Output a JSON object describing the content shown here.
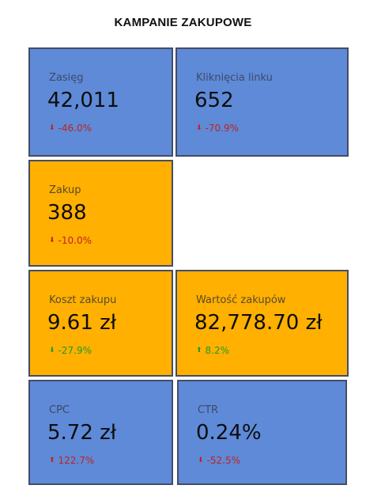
{
  "title": "KAMPANIE ZAKUPOWE",
  "colors": {
    "blue_card": "#5e8ad8",
    "orange_card": "#ffb000",
    "negative": "#c0231f",
    "positive": "#1f9a2a"
  },
  "cards": [
    {
      "label": "Zasięg",
      "value": "42,011",
      "delta": "-46.0%",
      "direction": "down",
      "trend": "negative",
      "color": "blue"
    },
    {
      "label": "Kliknięcia linku",
      "value": "652",
      "delta": "-70.9%",
      "direction": "down",
      "trend": "negative",
      "color": "blue"
    },
    {
      "label": "Zakup",
      "value": "388",
      "delta": "-10.0%",
      "direction": "down",
      "trend": "negative",
      "color": "orange"
    },
    {
      "label": "Koszt zakupu",
      "value": "9.61 zł",
      "delta": "-27.9%",
      "direction": "down",
      "trend": "positive",
      "color": "orange"
    },
    {
      "label": "Wartość zakupów",
      "value": "82,778.70 zł",
      "delta": "8.2%",
      "direction": "up",
      "trend": "positive",
      "color": "orange"
    },
    {
      "label": "CPC",
      "value": "5.72 zł",
      "delta": "122.7%",
      "direction": "up",
      "trend": "negative",
      "color": "blue"
    },
    {
      "label": "CTR",
      "value": "0.24%",
      "delta": "-52.5%",
      "direction": "down",
      "trend": "negative",
      "color": "blue"
    }
  ]
}
